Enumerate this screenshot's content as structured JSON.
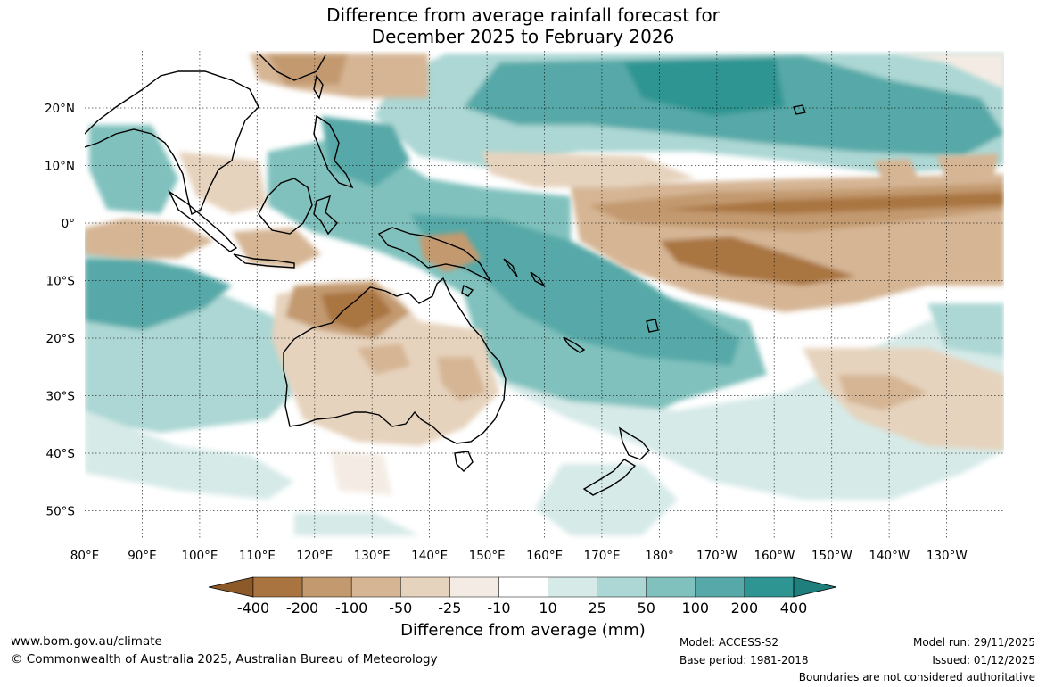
{
  "title_line1": "Difference from average rainfall forecast for",
  "title_line2": "December 2025 to February 2026",
  "map": {
    "lon_labels": [
      "80°E",
      "90°E",
      "100°E",
      "110°E",
      "120°E",
      "130°E",
      "140°E",
      "150°E",
      "160°E",
      "170°E",
      "180°",
      "170°W",
      "160°W",
      "150°W",
      "140°W",
      "130°W"
    ],
    "lat_labels": [
      "20°N",
      "10°N",
      "0°",
      "10°S",
      "20°S",
      "30°S",
      "40°S",
      "50°S"
    ],
    "lat_values": [
      20,
      10,
      0,
      -10,
      -20,
      -30,
      -40,
      -50
    ],
    "extent": {
      "lon_min": 80,
      "lon_max": 242,
      "lat_min": -55,
      "lat_max": 30
    }
  },
  "colorbar": {
    "title": "Difference from average (mm)",
    "tick_labels": [
      "-400",
      "-200",
      "-100",
      "-50",
      "-25",
      "-10",
      "10",
      "25",
      "50",
      "100",
      "200",
      "400"
    ],
    "colors": [
      "#8c5a28",
      "#a97440",
      "#c39a6f",
      "#d5b594",
      "#e6d3bd",
      "#f4ece4",
      "#ffffff",
      "#d6eae8",
      "#acd7d4",
      "#80c1bd",
      "#56a9a8",
      "#2f9592",
      "#1e7f7c"
    ]
  },
  "footer": {
    "website": "www.bom.gov.au/climate",
    "copyright": "© Commonwealth of Australia 2025, Australian Bureau of Meteorology",
    "model": "Model: ACCESS-S2",
    "base_period": "Base period: 1981-2018",
    "model_run": "Model run: 29/11/2025",
    "issued": "Issued: 01/12/2025",
    "disclaimer": "Boundaries are not considered authoritative"
  }
}
